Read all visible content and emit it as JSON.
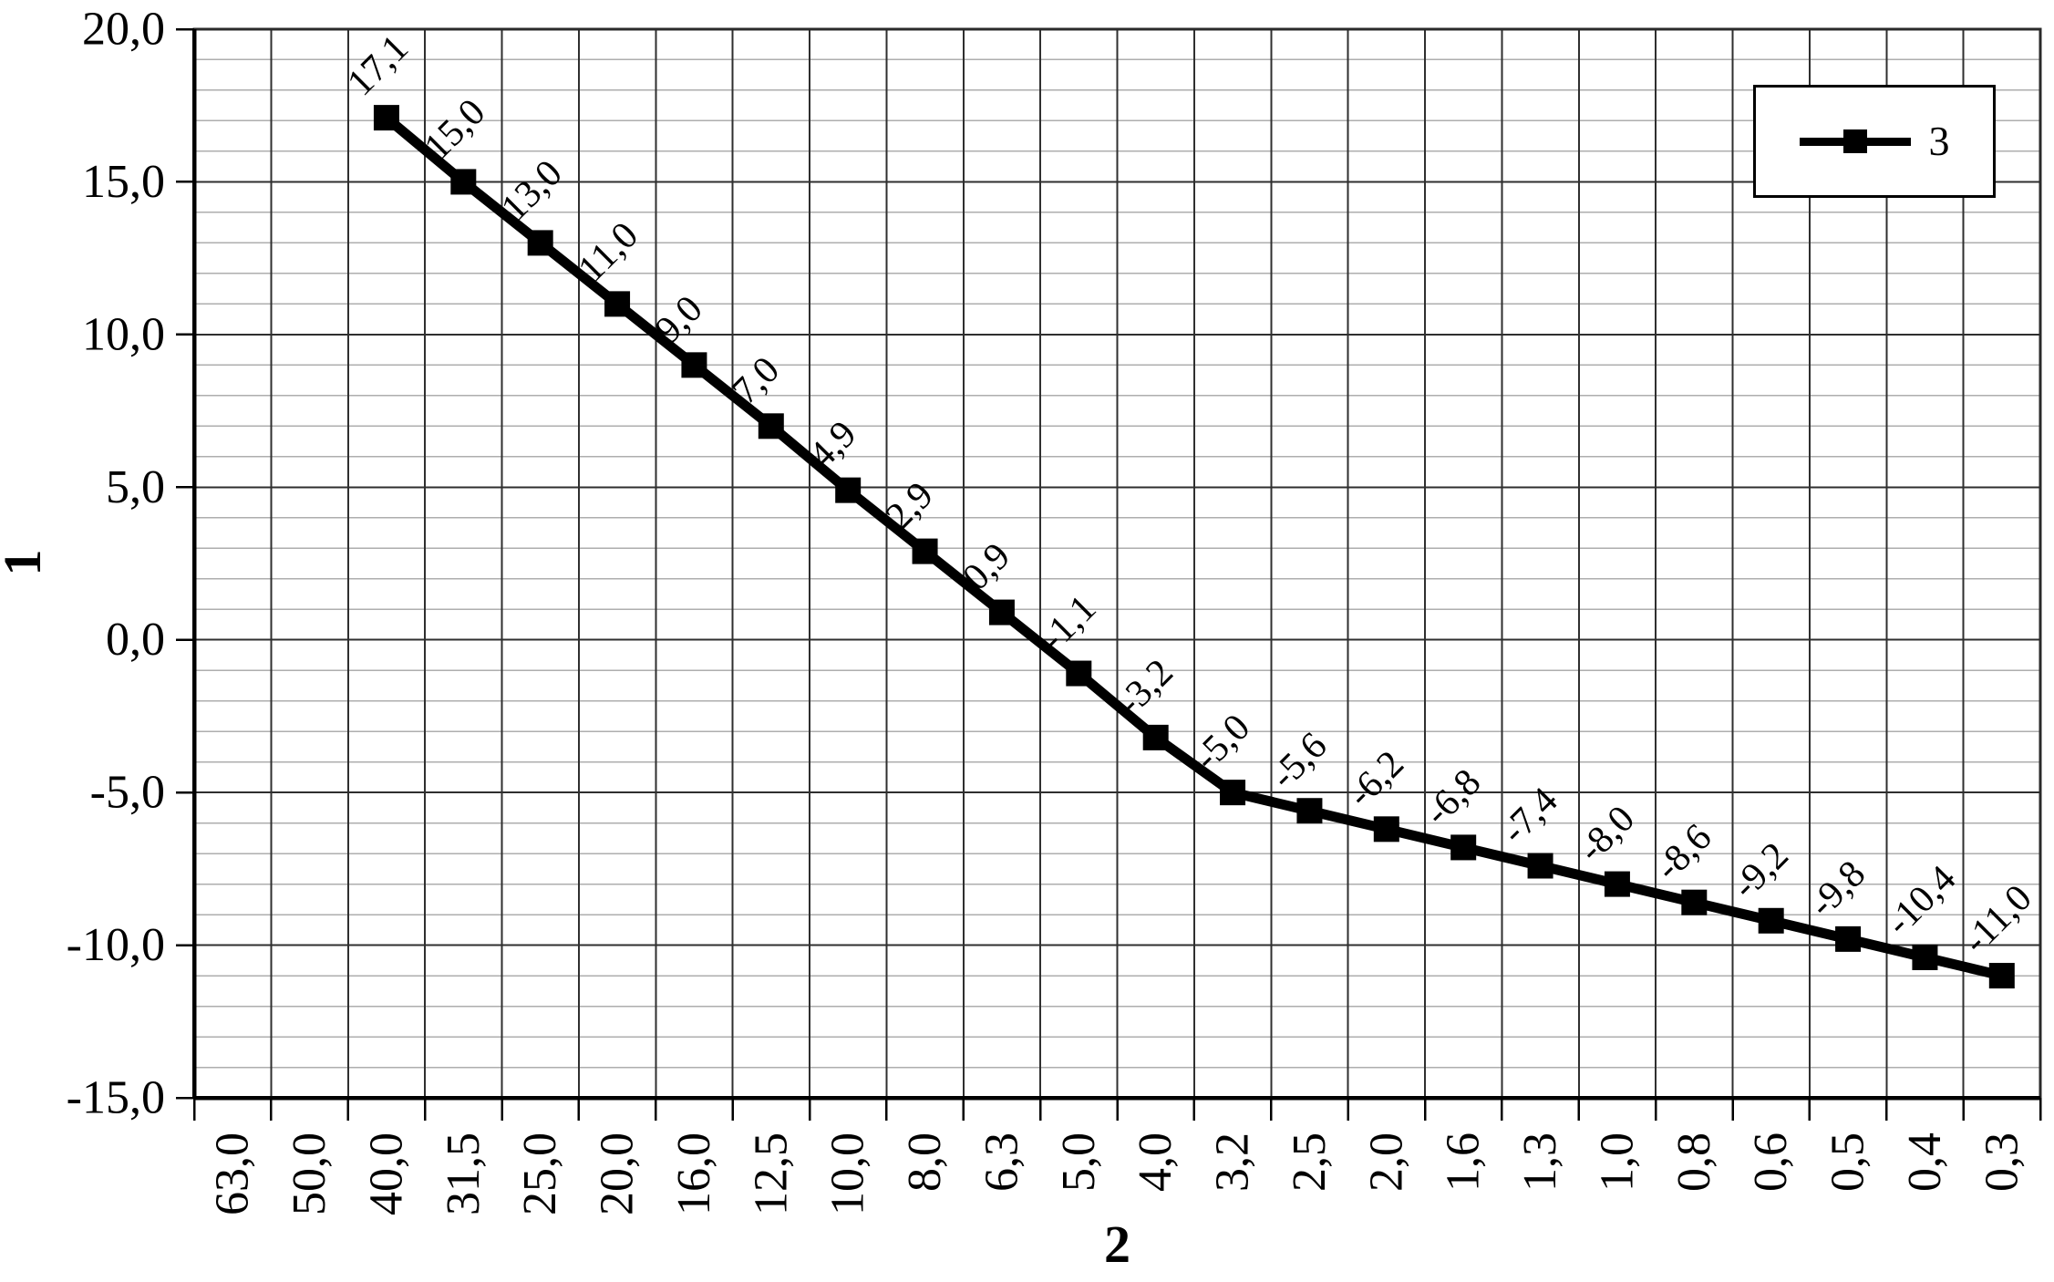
{
  "chart_data": {
    "type": "line",
    "title": "",
    "ylabel": "1",
    "xlabel": "2",
    "decimal_separator": ",",
    "legend_position": "top-right-inside",
    "grid": {
      "horizontal_major_step": 5,
      "horizontal_minor_step": 1,
      "vertical": "one-line-per-category-boundary"
    },
    "ylim": [
      -15,
      20
    ],
    "y_major_ticks": [
      20,
      15,
      10,
      5,
      0,
      -5,
      -10,
      -15
    ],
    "y_tick_labels": [
      "20,0",
      "15,0",
      "10,0",
      "5,0",
      "0,0",
      "-5,0",
      "-10,0",
      "-15,0"
    ],
    "categories": [
      "63,0",
      "50,0",
      "40,0",
      "31,5",
      "25,0",
      "20,0",
      "16,0",
      "12,5",
      "10,0",
      "8,0",
      "6,3",
      "5,0",
      "4,0",
      "3,2",
      "2,5",
      "2,0",
      "1,6",
      "1,3",
      "1,0",
      "0,8",
      "0,6",
      "0,5",
      "0,4",
      "0,3"
    ],
    "series": [
      {
        "name": "3",
        "marker": "filled-square",
        "line_color": "#000000",
        "start_index": 2,
        "values": [
          17.1,
          15.0,
          13.0,
          11.0,
          9.0,
          7.0,
          4.9,
          2.9,
          0.9,
          -1.1,
          -3.2,
          -5.0,
          -5.6,
          -6.2,
          -6.8,
          -7.4,
          -8.0,
          -8.6,
          -9.2,
          -9.8,
          -10.4,
          -11.0
        ],
        "data_labels": [
          "17,1",
          "15,0",
          "13,0",
          "11,0",
          "9,0",
          "7,0",
          "4,9",
          "2,9",
          "0,9",
          "-1,1",
          "-3,2",
          "-5,0",
          "-5,6",
          "-6,2",
          "-6,8",
          "-7,4",
          "-8,0",
          "-8,6",
          "-9,2",
          "-9,8",
          "-10,4",
          "-11,0"
        ]
      }
    ],
    "colors": {
      "series_line": "#000000",
      "marker": "#000000",
      "grid_major": "#2f2f2f",
      "grid_minor": "#aeaeae",
      "axis": "#000000",
      "plot_border": "#2a2a2a",
      "background": "#ffffff",
      "text": "#000000"
    }
  }
}
